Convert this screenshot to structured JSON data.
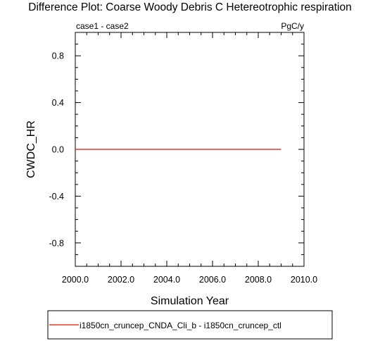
{
  "chart_data": {
    "type": "line",
    "title": "Difference Plot: Coarse Woody Debris C Hetereotrophic respiration",
    "subtitle_left": "case1 - case2",
    "subtitle_right": "PgC/y",
    "xlabel": "Simulation Year",
    "ylabel": "CWDC_HR",
    "xlim": [
      2000.0,
      2010.0
    ],
    "ylim": [
      -1.0,
      1.0
    ],
    "x_ticks": [
      {
        "value": 2000.0,
        "label": "2000.0"
      },
      {
        "value": 2002.0,
        "label": "2002.0"
      },
      {
        "value": 2004.0,
        "label": "2004.0"
      },
      {
        "value": 2006.0,
        "label": "2006.0"
      },
      {
        "value": 2008.0,
        "label": "2008.0"
      },
      {
        "value": 2010.0,
        "label": "2010.0"
      }
    ],
    "y_ticks": [
      {
        "value": 0.8,
        "label": "0.8"
      },
      {
        "value": 0.4,
        "label": "0.4"
      },
      {
        "value": 0.0,
        "label": "0.0"
      },
      {
        "value": -0.4,
        "label": "-0.4"
      },
      {
        "value": -0.8,
        "label": "-0.8"
      }
    ],
    "x_minor_step": 0.5,
    "y_minor_step": 0.1,
    "grid": false,
    "legend_position": "bottom",
    "series": [
      {
        "name": "i1850cn_cruncep_CNDA_Cli_b - i1850cn_cruncep_ctl",
        "color": "#e8392c",
        "x": [
          2000,
          2001,
          2002,
          2003,
          2004,
          2005,
          2006,
          2007,
          2008,
          2009
        ],
        "y": [
          0.0,
          0.0,
          0.0,
          0.0,
          0.0,
          0.0,
          0.0,
          0.0,
          0.0,
          0.0
        ]
      }
    ]
  }
}
